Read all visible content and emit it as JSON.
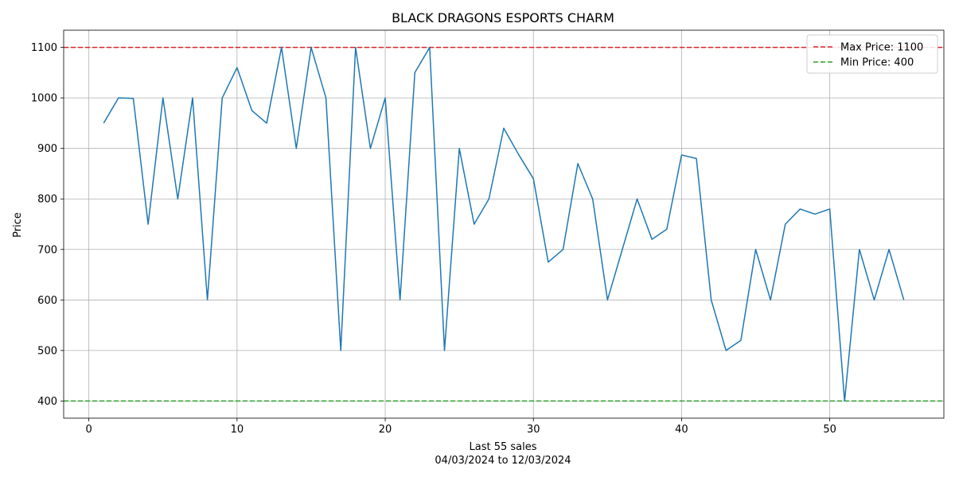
{
  "chart_data": {
    "type": "line",
    "title": "BLACK DRAGONS ESPORTS CHARM",
    "xlabel": "Last 55 sales",
    "xlabel_sub": "04/03/2024 to 12/03/2024",
    "ylabel": "Price",
    "xlim": [
      -1.7,
      57.7
    ],
    "ylim": [
      366,
      1134
    ],
    "x_ticks": [
      0,
      10,
      20,
      30,
      40,
      50
    ],
    "y_ticks": [
      400,
      500,
      600,
      700,
      800,
      900,
      1000,
      1100
    ],
    "grid": true,
    "legend_position": "top-right",
    "series": [
      {
        "color": "#1f77b4",
        "x": [
          1,
          2,
          3,
          4,
          5,
          6,
          7,
          8,
          9,
          10,
          11,
          12,
          13,
          14,
          15,
          16,
          17,
          18,
          19,
          20,
          21,
          22,
          23,
          24,
          25,
          26,
          27,
          28,
          29,
          30,
          31,
          32,
          33,
          34,
          35,
          36,
          37,
          38,
          39,
          40,
          41,
          42,
          43,
          44,
          45,
          46,
          47,
          48,
          49,
          50,
          51,
          52,
          53,
          54,
          55
        ],
        "values": [
          950,
          1000,
          999,
          750,
          1000,
          800,
          1000,
          600,
          1000,
          1060,
          975,
          950,
          1100,
          900,
          1100,
          1000,
          500,
          1100,
          900,
          1000,
          600,
          1050,
          1100,
          500,
          900,
          750,
          800,
          940,
          888,
          840,
          675,
          700,
          870,
          800,
          600,
          700,
          800,
          720,
          740,
          887,
          880,
          600,
          500,
          520,
          700,
          600,
          750,
          780,
          770,
          780,
          400,
          700,
          600,
          700,
          600
        ]
      }
    ],
    "reference_lines": [
      {
        "name": "Max Price: 1100",
        "value": 1100,
        "color": "#d62728"
      },
      {
        "name": "Min Price: 400",
        "value": 400,
        "color": "#2ca02c"
      }
    ]
  }
}
